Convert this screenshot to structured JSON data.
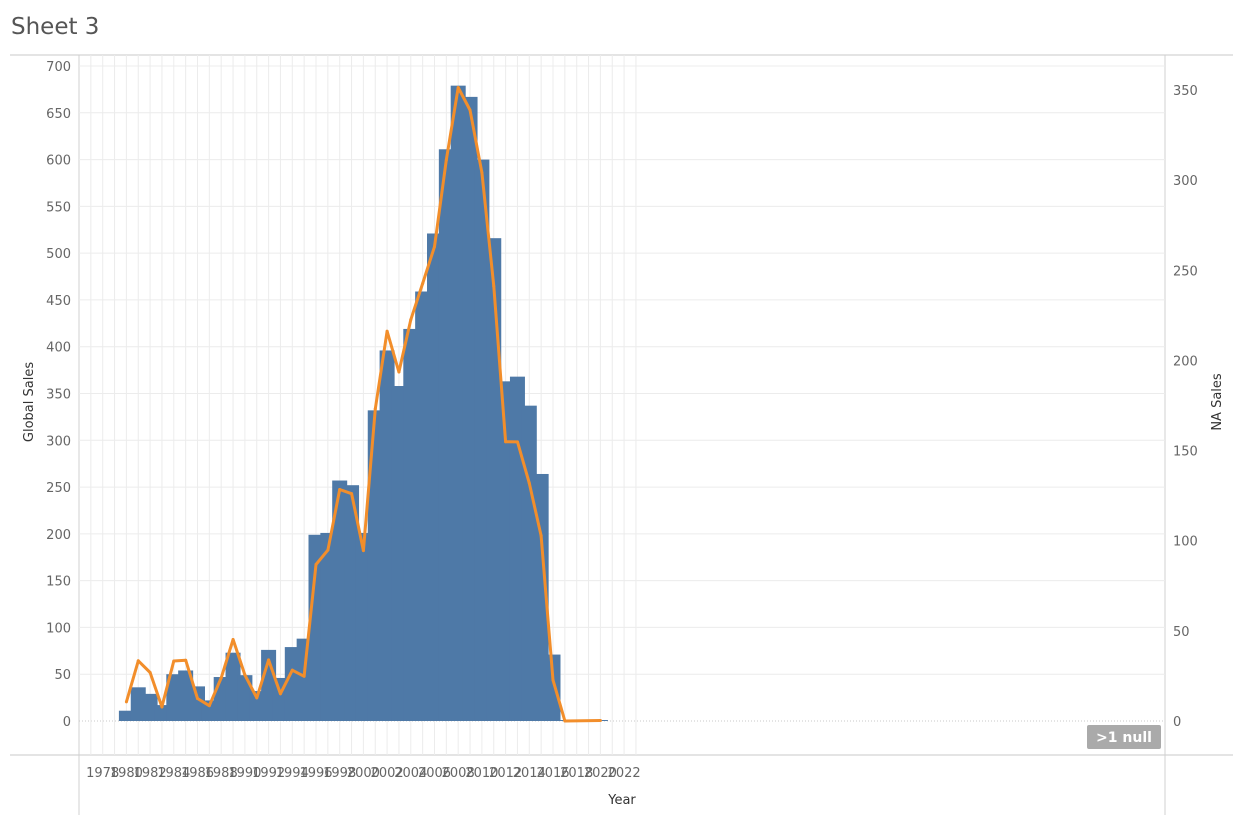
{
  "sheet": {
    "title": "Sheet 3"
  },
  "null_indicator": {
    "label": ">1 null"
  },
  "colors": {
    "bar": "#4e79a7",
    "line": "#f28e2b",
    "grid": "#ececec",
    "null_badge": "#aaaaaa"
  },
  "chart_data": {
    "type": "bar",
    "xlabel": "Year",
    "ylabel": "Global Sales",
    "y2label": "NA Sales",
    "xlim": [
      1977,
      2023
    ],
    "ylim": [
      0,
      700
    ],
    "y2lim": [
      0,
      350
    ],
    "x_ticks": [
      1978,
      1980,
      1982,
      1984,
      1986,
      1988,
      1990,
      1992,
      1994,
      1996,
      1998,
      2000,
      2002,
      2004,
      2006,
      2008,
      2010,
      2012,
      2014,
      2016,
      2018,
      2020,
      2022
    ],
    "y_ticks": [
      0,
      50,
      100,
      150,
      200,
      250,
      300,
      350,
      400,
      450,
      500,
      550,
      600,
      650,
      700
    ],
    "y2_ticks": [
      0,
      50,
      100,
      150,
      200,
      250,
      300,
      350
    ],
    "grid": true,
    "series": [
      {
        "name": "Global Sales",
        "type": "bar",
        "axis": "left",
        "x": [
          1980,
          1981,
          1982,
          1983,
          1984,
          1985,
          1986,
          1987,
          1988,
          1989,
          1990,
          1991,
          1992,
          1993,
          1994,
          1995,
          1996,
          1997,
          1998,
          1999,
          2000,
          2001,
          2002,
          2003,
          2004,
          2005,
          2006,
          2007,
          2008,
          2009,
          2010,
          2011,
          2012,
          2013,
          2014,
          2015,
          2016,
          2017,
          2020
        ],
        "values": [
          11,
          36,
          29,
          17,
          50,
          54,
          37,
          22,
          47,
          73,
          49,
          32,
          76,
          46,
          79,
          88,
          199,
          201,
          257,
          252,
          201,
          332,
          396,
          358,
          419,
          459,
          521,
          611,
          679,
          667,
          600,
          516,
          363,
          368,
          337,
          264,
          71,
          0.1,
          0.3
        ]
      },
      {
        "name": "NA Sales",
        "type": "line",
        "axis": "right",
        "x": [
          1980,
          1981,
          1982,
          1983,
          1984,
          1985,
          1986,
          1987,
          1988,
          1989,
          1990,
          1991,
          1992,
          1993,
          1994,
          1995,
          1996,
          1997,
          1998,
          1999,
          2000,
          2001,
          2002,
          2003,
          2004,
          2005,
          2006,
          2007,
          2008,
          2009,
          2010,
          2011,
          2012,
          2013,
          2014,
          2015,
          2016,
          2017,
          2020
        ],
        "values": [
          10.6,
          33.4,
          26.9,
          7.8,
          33.3,
          33.7,
          12.5,
          8.5,
          23.9,
          45.2,
          25.5,
          12.8,
          33.9,
          15.1,
          28.2,
          24.8,
          86.8,
          94.8,
          128.4,
          126.1,
          94.5,
          173.1,
          216.2,
          193.6,
          222.6,
          242.6,
          263.1,
          311.2,
          351.4,
          338.9,
          304.2,
          241.2,
          154.9,
          154.8,
          131.9,
          102.8,
          22.7,
          0,
          0.3
        ]
      }
    ]
  }
}
